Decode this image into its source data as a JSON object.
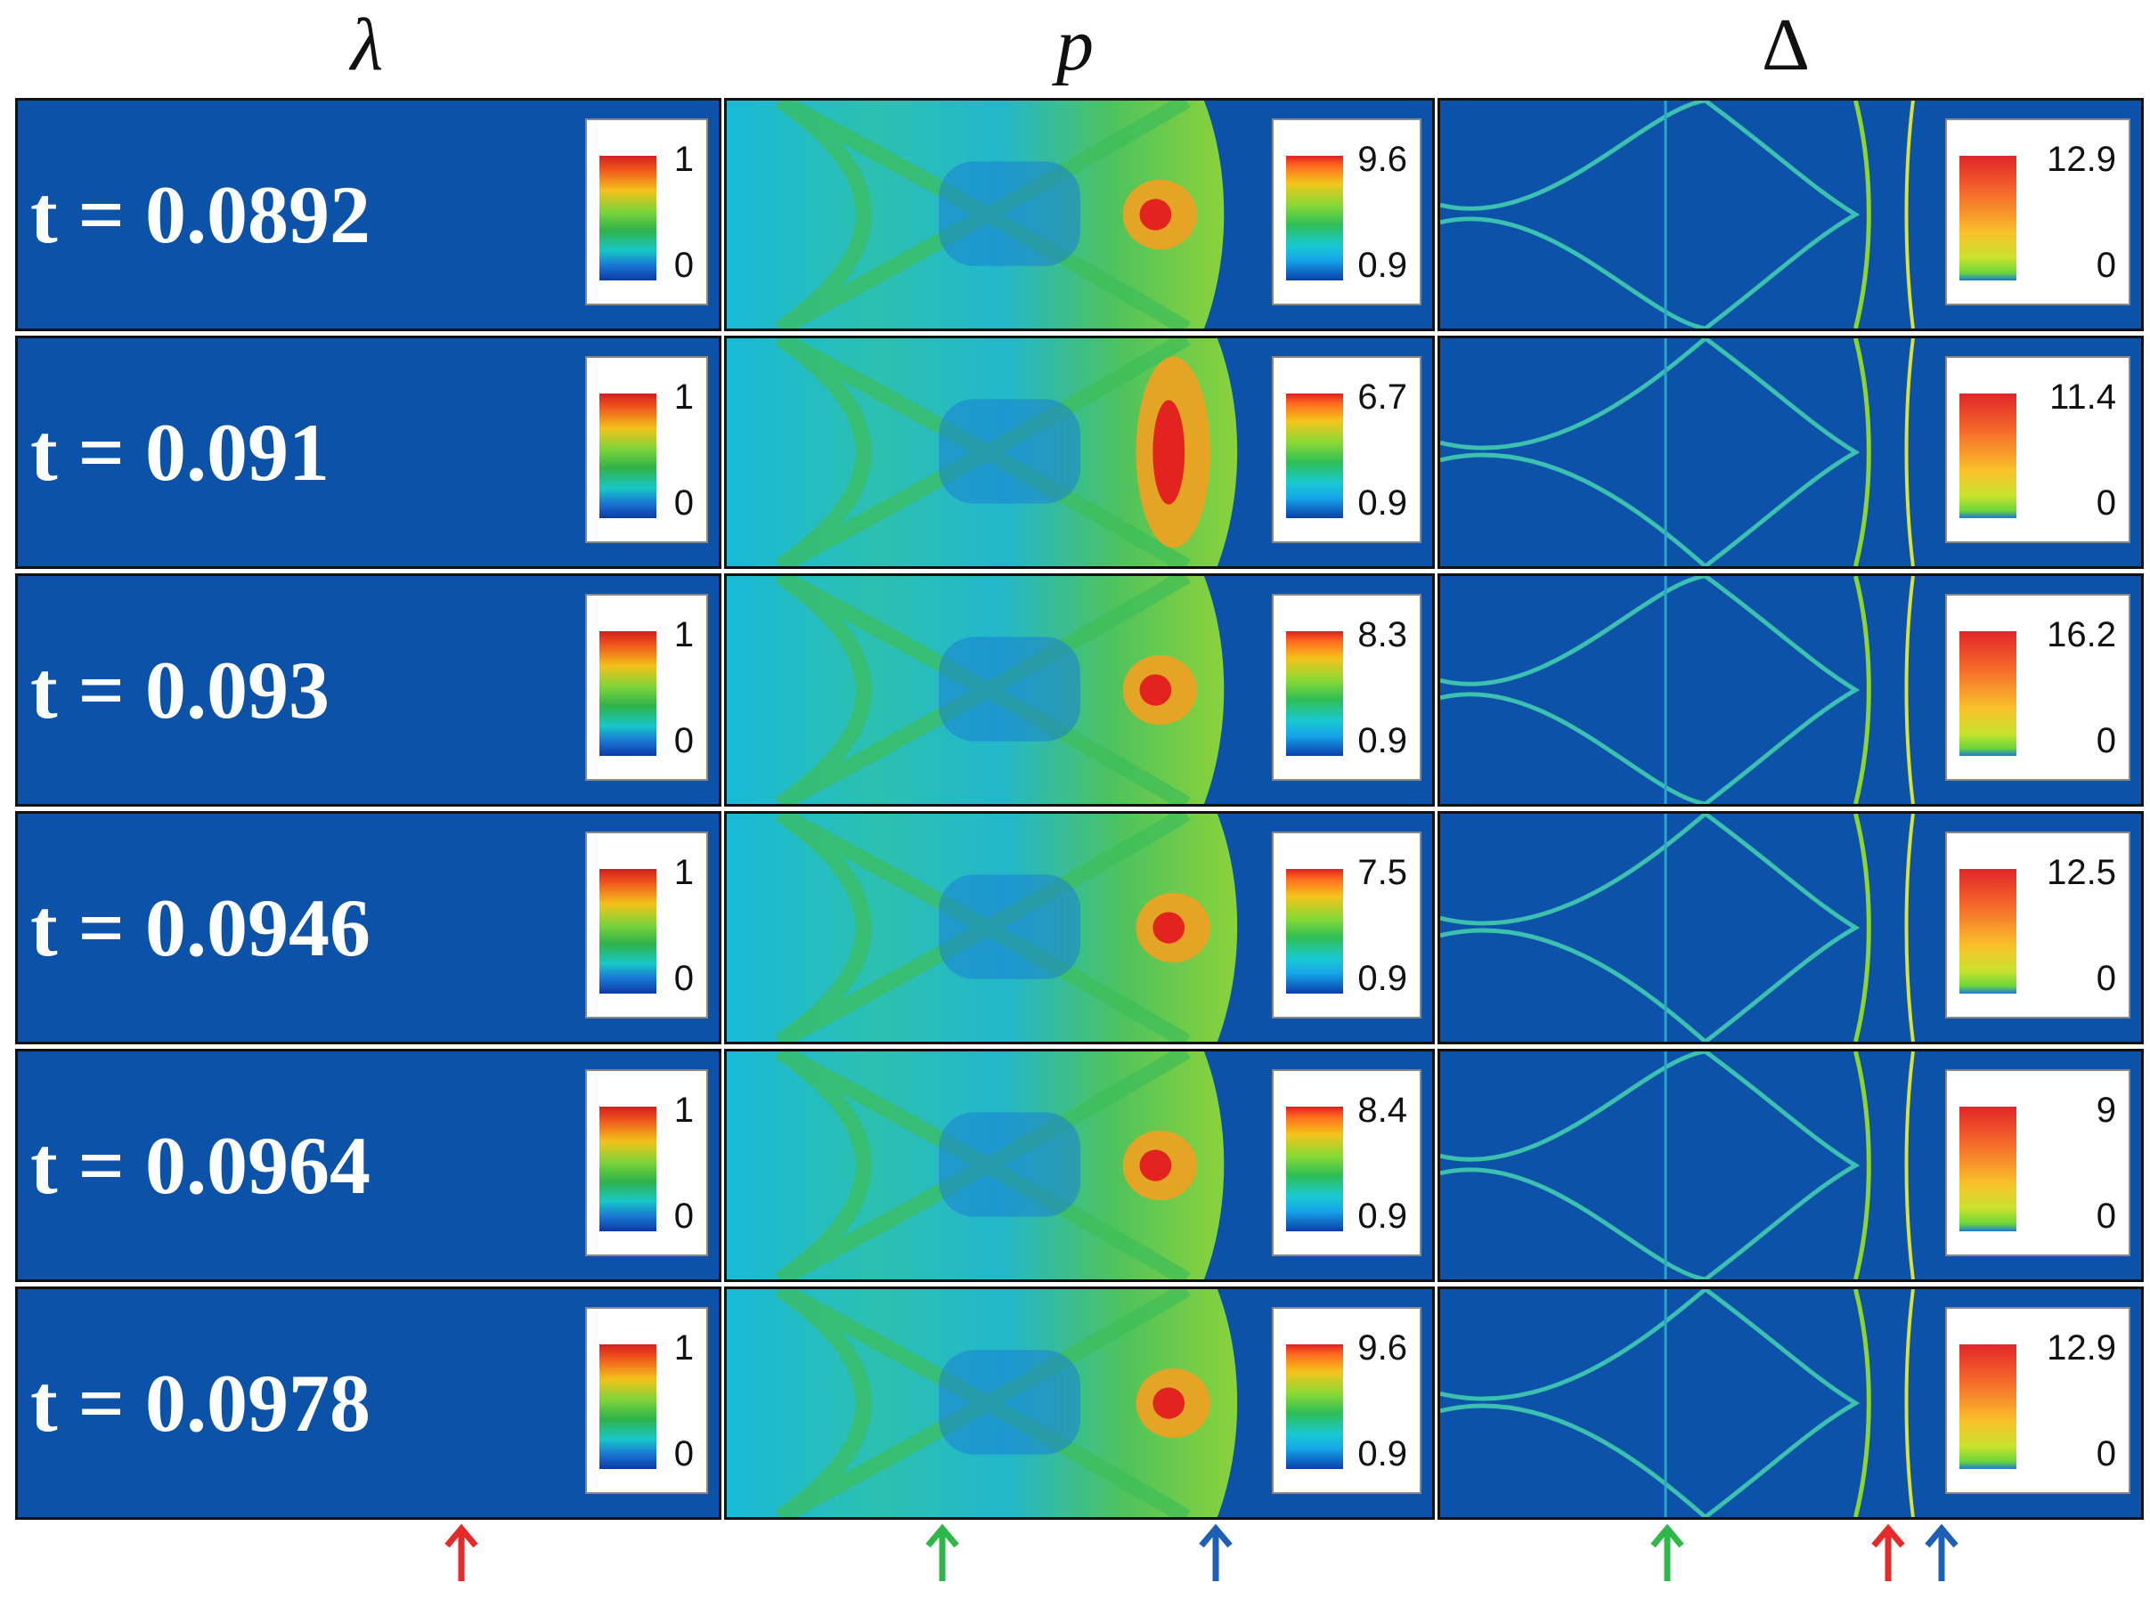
{
  "columns": [
    {
      "symbol": "λ"
    },
    {
      "symbol": "p"
    },
    {
      "symbol": "Δ"
    }
  ],
  "rows": [
    {
      "time": "t = 0.0892",
      "lambda_max": "1",
      "lambda_min": "0",
      "p_max": "9.6",
      "p_min": "0.9",
      "delta_max": "12.9",
      "delta_min": "0"
    },
    {
      "time": "t = 0.091",
      "lambda_max": "1",
      "lambda_min": "0",
      "p_max": "6.7",
      "p_min": "0.9",
      "delta_max": "11.4",
      "delta_min": "0"
    },
    {
      "time": "t = 0.093",
      "lambda_max": "1",
      "lambda_min": "0",
      "p_max": "8.3",
      "p_min": "0.9",
      "delta_max": "16.2",
      "delta_min": "0"
    },
    {
      "time": "t = 0.0946",
      "lambda_max": "1",
      "lambda_min": "0",
      "p_max": "7.5",
      "p_min": "0.9",
      "delta_max": "12.5",
      "delta_min": "0"
    },
    {
      "time": "t = 0.0964",
      "lambda_max": "1",
      "lambda_min": "0",
      "p_max": "8.4",
      "p_min": "0.9",
      "delta_max": "9",
      "delta_min": "0"
    },
    {
      "time": "t = 0.0978",
      "lambda_max": "1",
      "lambda_min": "0",
      "p_max": "9.6",
      "p_min": "0.9",
      "delta_max": "12.9",
      "delta_min": "0"
    }
  ],
  "colors": {
    "field_bg": "#0b52a8",
    "burned": "#ee2a2f",
    "arrow_red": "#e52a2a",
    "arrow_green": "#2fb84a",
    "arrow_blue": "#1c5fb5"
  },
  "arrows": [
    {
      "name": "lambda-red-arrow",
      "color": "red"
    },
    {
      "name": "p-green-arrow",
      "color": "green"
    },
    {
      "name": "p-blue-arrow",
      "color": "blue"
    },
    {
      "name": "delta-green-arrow",
      "color": "green"
    },
    {
      "name": "delta-red-arrow",
      "color": "red"
    },
    {
      "name": "delta-blue-arrow",
      "color": "blue"
    }
  ]
}
